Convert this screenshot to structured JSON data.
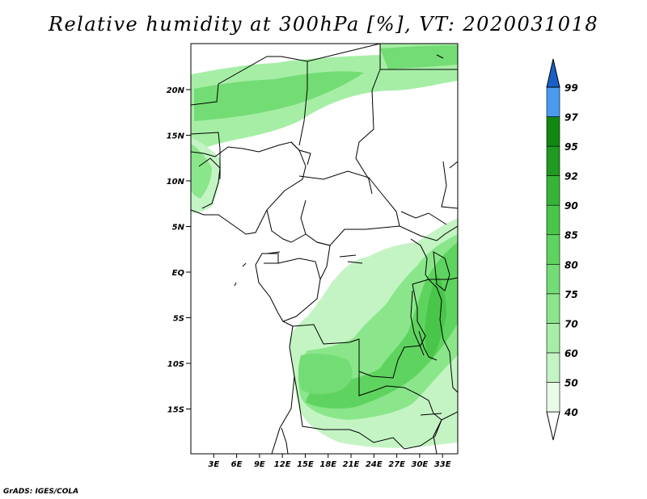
{
  "title": "Relative humidity at 300hPa [%], VT: 2020031018",
  "credit": "GrADS: IGES/COLA",
  "map": {
    "lon_range": [
      0,
      35
    ],
    "lat_range": [
      -20,
      25
    ],
    "y_ticks": [
      "20N",
      "15N",
      "10N",
      "5N",
      "EQ",
      "5S",
      "10S",
      "15S"
    ],
    "x_ticks": [
      "3E",
      "6E",
      "9E",
      "12E",
      "15E",
      "18E",
      "21E",
      "24E",
      "27E",
      "30E",
      "33E"
    ]
  },
  "colorbar": {
    "levels": [
      "40",
      "50",
      "60",
      "70",
      "75",
      "80",
      "85",
      "90",
      "92",
      "95",
      "97",
      "99"
    ],
    "colors": [
      "#e8fbe8",
      "#c4f4c4",
      "#a6eea6",
      "#8be68b",
      "#74dc74",
      "#5fd35f",
      "#49c649",
      "#36b436",
      "#209a20",
      "#118811",
      "#4a9bf0",
      "#2f7fe0",
      "#1a5fc8"
    ]
  },
  "colors": {
    "land_border": "#000000",
    "frame": "#000000"
  }
}
